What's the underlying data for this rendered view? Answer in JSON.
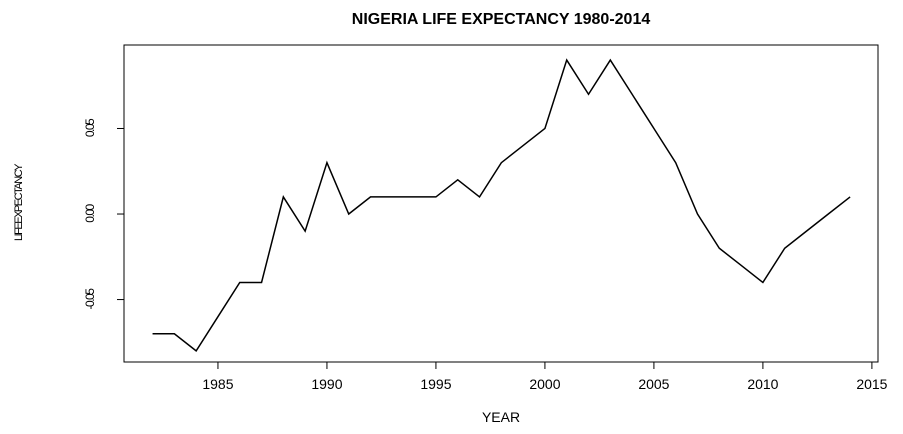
{
  "chart_data": {
    "type": "line",
    "title": "NIGERIA LIFE EXPECTANCY 1980-2014",
    "x_label": "YEAR",
    "y_label": "LIFEEXPECTANCY",
    "x": [
      1982,
      1983,
      1984,
      1985,
      1986,
      1987,
      1988,
      1989,
      1990,
      1991,
      1992,
      1993,
      1994,
      1995,
      1996,
      1997,
      1998,
      1999,
      2000,
      2001,
      2002,
      2003,
      2004,
      2005,
      2006,
      2007,
      2008,
      2009,
      2010,
      2011,
      2012,
      2013,
      2014
    ],
    "values": [
      -0.07,
      -0.07,
      -0.08,
      -0.06,
      -0.04,
      -0.04,
      0.01,
      -0.01,
      0.03,
      0.0,
      0.01,
      0.01,
      0.01,
      0.01,
      0.02,
      0.01,
      0.03,
      0.04,
      0.05,
      0.09,
      0.07,
      0.09,
      0.07,
      0.05,
      0.03,
      0.0,
      -0.02,
      -0.03,
      -0.04,
      -0.02,
      -0.01,
      0.0,
      0.01
    ],
    "color": "#000000",
    "xlim": [
      1980.69,
      2015.28
    ],
    "xticks": [
      1985,
      1990,
      1995,
      2000,
      2005,
      2010,
      2015
    ],
    "ylim": [
      -0.0865,
      0.0988
    ],
    "yticks": [
      {
        "value": -0.05,
        "label": "-0.05"
      },
      {
        "value": 0,
        "label": "0.00"
      },
      {
        "value": 0.05,
        "label": "0.05"
      }
    ]
  }
}
